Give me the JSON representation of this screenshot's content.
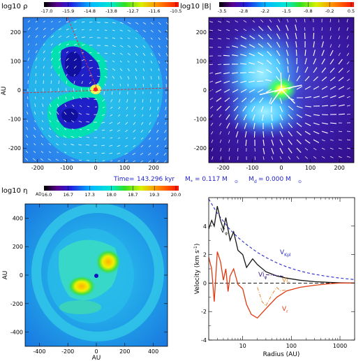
{
  "colors": {
    "vector": "#ffffff",
    "slice_dash": "#e23030",
    "caption": "#2222cc",
    "v_kpl": "#2a2ad0",
    "v_phi": "#161616",
    "v_phi_ideal": "#3a1a8a",
    "v_r": "#e03a12",
    "v_r_ideal": "#e08a30",
    "zero_line": "#000000"
  },
  "caption": {
    "time_label": "Time=",
    "time_value": "143.296 kyr",
    "mstar_symbol": "M",
    "mstar_sub": "*",
    "mstar_value": "= 0.117 M",
    "mstar_unit_sub": "⊙",
    "mdisk_symbol": "M",
    "mdisk_sub": "d",
    "mdisk_value": "= 0.000 M",
    "mdisk_unit_sub": "⊙"
  },
  "chart_data": [
    {
      "type": "heatmap",
      "colorbar": {
        "label": "log10 ρ",
        "ticks": [
          "-17.0",
          "-15.9",
          "-14.8",
          "-13.8",
          "-12.7",
          "-11.6",
          "-10.5"
        ],
        "range": [
          -17.0,
          -10.5
        ]
      },
      "xlim": [
        -250,
        250
      ],
      "ylim": [
        -250,
        250
      ],
      "xticks": [
        "-200",
        "-100",
        "0",
        "100",
        "200"
      ],
      "yticks": [
        "-200",
        "-100",
        "0",
        "100",
        "200"
      ],
      "ylabel": "AU",
      "features": [
        "two-lobed high-density structure",
        "dashed slice lines through centre",
        "velocity vectors"
      ]
    },
    {
      "type": "heatmap",
      "colorbar": {
        "label": "log10 |B|",
        "ticks": [
          "-3.5",
          "-2.8",
          "-2.2",
          "-1.5",
          "-0.8",
          "-0.2",
          "0.5"
        ],
        "range": [
          -3.5,
          0.5
        ]
      },
      "xlim": [
        -250,
        250
      ],
      "ylim": [
        -250,
        250
      ],
      "xticks": [
        "-200",
        "-100",
        "0",
        "100",
        "200"
      ],
      "yticks": [
        "-200",
        "-100",
        "0",
        "100",
        "200"
      ],
      "features": [
        "magnetic field vectors",
        "bright centre"
      ]
    },
    {
      "type": "heatmap",
      "colorbar": {
        "label": "log10 η",
        "label_sub": "AD",
        "ticks": [
          "16.0",
          "16.7",
          "17.3",
          "18.0",
          "18.7",
          "19.3",
          "20.0"
        ],
        "range": [
          16.0,
          20.0
        ]
      },
      "xlim": [
        -500,
        500
      ],
      "ylim": [
        -500,
        500
      ],
      "xticks": [
        "-400",
        "-200",
        "0",
        "200",
        "400"
      ],
      "yticks": [
        "-400",
        "-200",
        "0",
        "200",
        "400"
      ],
      "xlabel": "AU",
      "ylabel": "AU",
      "features": [
        "spiral structure",
        "high resistivity patches near centre"
      ]
    },
    {
      "type": "line",
      "xlabel": "Radius (AU)",
      "ylabel": "Velocity (km s",
      "ylabel_sup": "-1",
      "ylabel_end": ")",
      "xscale": "log",
      "xlim": [
        2,
        2000
      ],
      "ylim": [
        -4,
        6
      ],
      "xticks": [
        "10",
        "100",
        "1000"
      ],
      "yticks": [
        "-4",
        "-2",
        "0",
        "2",
        "4"
      ],
      "series": [
        {
          "name": "V",
          "name_sub": "Kpl",
          "style": "dashed",
          "x": [
            2,
            3,
            5,
            8,
            12,
            20,
            30,
            50,
            80,
            120,
            200,
            300,
            500,
            800,
            1200,
            2000
          ],
          "y": [
            5.9,
            4.9,
            3.9,
            3.2,
            2.7,
            2.15,
            1.8,
            1.42,
            1.14,
            0.94,
            0.74,
            0.62,
            0.49,
            0.39,
            0.32,
            0.25
          ]
        },
        {
          "name": "V",
          "name_sub": "φ",
          "style": "solid",
          "x": [
            2,
            2.3,
            2.6,
            3,
            3.5,
            4,
            4.5,
            5.5,
            6.5,
            8,
            10,
            12,
            16,
            20,
            30,
            50,
            80,
            150,
            300,
            600,
            1000,
            2000
          ],
          "y": [
            3.8,
            4.4,
            4.0,
            5.4,
            4.4,
            3.8,
            4.6,
            3.0,
            3.6,
            2.3,
            2.0,
            1.1,
            1.7,
            1.3,
            0.8,
            0.5,
            0.35,
            0.2,
            0.1,
            0.05,
            0.02,
            0.0
          ]
        },
        {
          "name": "Vi",
          "name_sub": "φ",
          "style": "dash-dot",
          "x": [
            30,
            40,
            50,
            60,
            70
          ],
          "y": [
            0.6,
            0.55,
            0.55,
            0.5,
            0.45
          ]
        },
        {
          "name": "V",
          "name_sub": "r",
          "style": "solid",
          "x": [
            2,
            2.3,
            2.6,
            3,
            3.5,
            4,
            4.5,
            5,
            5.5,
            6.5,
            8,
            10,
            12,
            15,
            20,
            30,
            50,
            80,
            150,
            300,
            600,
            1000,
            2000
          ],
          "y": [
            1.8,
            1.0,
            -1.3,
            2.2,
            1.5,
            0.2,
            1.0,
            -0.6,
            0.5,
            1.0,
            -0.1,
            -0.4,
            -1.5,
            -2.2,
            -2.45,
            -1.8,
            -1.0,
            -0.55,
            -0.3,
            -0.15,
            -0.05,
            0.0,
            0.0
          ]
        },
        {
          "name": "Vi",
          "name_sub": "r",
          "style": "dash-dot",
          "x": [
            20,
            25,
            30,
            40,
            50,
            60,
            70,
            80
          ],
          "y": [
            -0.3,
            -1.3,
            -1.6,
            -0.8,
            -0.3,
            -0.55,
            -0.5,
            -0.5
          ]
        }
      ]
    }
  ]
}
